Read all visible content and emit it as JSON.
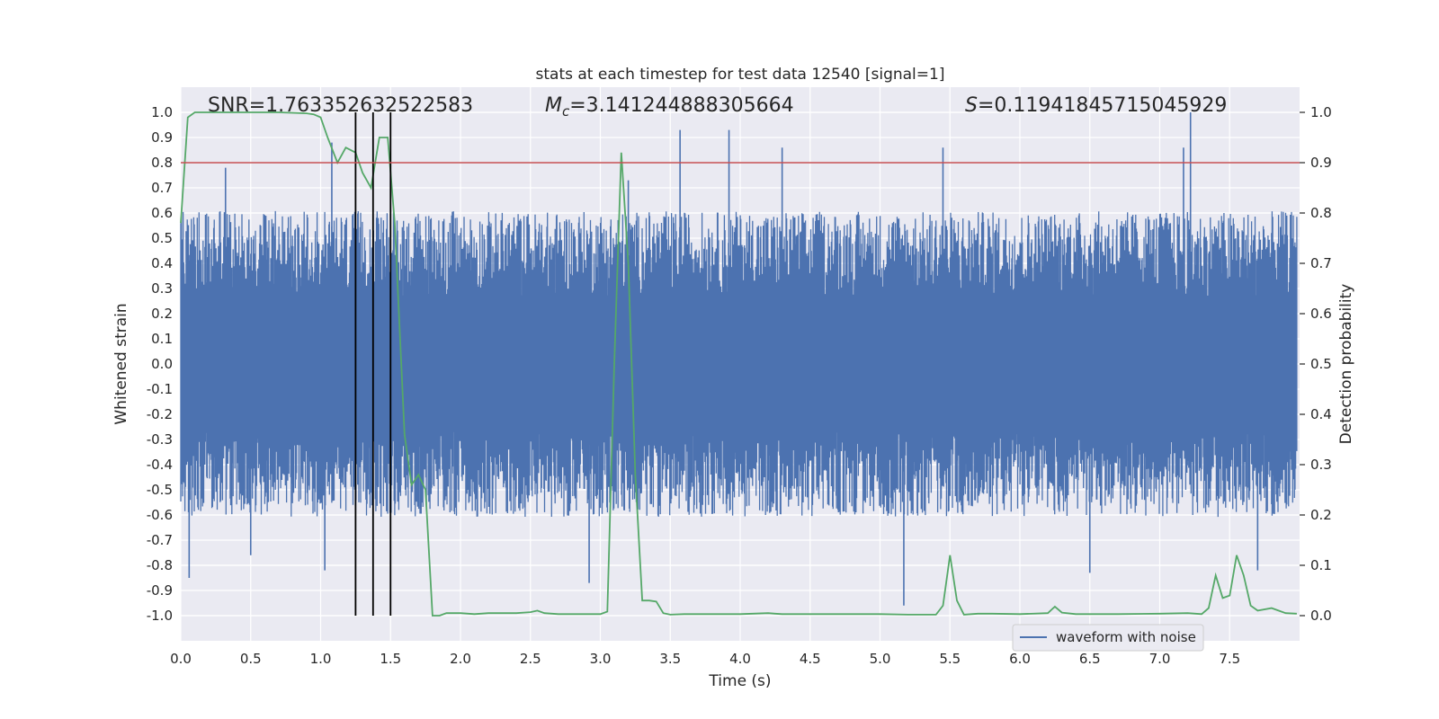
{
  "chart_data": {
    "type": "line",
    "title": "stats at each timestep for test data 12540 [signal=1]",
    "xlabel": "Time (s)",
    "ylabel_left": "Whitened strain",
    "ylabel_right": "Detection probability",
    "xlim": [
      0.0,
      8.0
    ],
    "ylim_left": [
      -1.1,
      1.1
    ],
    "ylim_right": [
      -0.05,
      1.05
    ],
    "x_ticks": [
      "0.0",
      "0.5",
      "1.0",
      "1.5",
      "2.0",
      "2.5",
      "3.0",
      "3.5",
      "4.0",
      "4.5",
      "5.0",
      "5.5",
      "6.0",
      "6.5",
      "7.0",
      "7.5"
    ],
    "x_tick_values": [
      0.0,
      0.5,
      1.0,
      1.5,
      2.0,
      2.5,
      3.0,
      3.5,
      4.0,
      4.5,
      5.0,
      5.5,
      6.0,
      6.5,
      7.0,
      7.5
    ],
    "y_left_ticks": [
      "1.0",
      "0.9",
      "0.8",
      "0.7",
      "0.6",
      "0.5",
      "0.4",
      "0.3",
      "0.2",
      "0.1",
      "0.0",
      "-0.1",
      "-0.2",
      "-0.3",
      "-0.4",
      "-0.5",
      "-0.6",
      "-0.7",
      "-0.8",
      "-0.9",
      "-1.0"
    ],
    "y_left_tick_values": [
      1.0,
      0.9,
      0.8,
      0.7,
      0.6,
      0.5,
      0.4,
      0.3,
      0.2,
      0.1,
      0.0,
      -0.1,
      -0.2,
      -0.3,
      -0.4,
      -0.5,
      -0.6,
      -0.7,
      -0.8,
      -0.9,
      -1.0
    ],
    "y_right_ticks": [
      "1.0",
      "0.9",
      "0.8",
      "0.7",
      "0.6",
      "0.5",
      "0.4",
      "0.3",
      "0.2",
      "0.1",
      "0.0"
    ],
    "y_right_tick_values": [
      1.0,
      0.9,
      0.8,
      0.7,
      0.6,
      0.5,
      0.4,
      0.3,
      0.2,
      0.1,
      0.0
    ],
    "grid": true,
    "annotations": {
      "snr": "SNR=1.763352632522583",
      "mc_symbol": "M",
      "mc_subscript": "c",
      "mc_value": "=3.141244888305664",
      "s_symbol": "S",
      "s_value": "=0.11941845715045929"
    },
    "threshold": {
      "value": 0.9,
      "axis": "right",
      "color": "#c44e52"
    },
    "vertical_lines": [
      1.25,
      1.375,
      1.5
    ],
    "waveform": {
      "name": "waveform with noise",
      "color": "#4c72b0",
      "envelope_upper": 0.45,
      "envelope_lower": -0.45,
      "spikes": [
        {
          "x": 0.06,
          "y": -0.85
        },
        {
          "x": 0.32,
          "y": 0.78
        },
        {
          "x": 0.5,
          "y": -0.76
        },
        {
          "x": 1.03,
          "y": -0.82
        },
        {
          "x": 1.08,
          "y": 0.88
        },
        {
          "x": 3.57,
          "y": 0.93
        },
        {
          "x": 3.92,
          "y": 0.93
        },
        {
          "x": 4.3,
          "y": 0.86
        },
        {
          "x": 5.45,
          "y": 0.86
        },
        {
          "x": 5.17,
          "y": -0.96
        },
        {
          "x": 6.5,
          "y": -0.83
        },
        {
          "x": 7.22,
          "y": 1.0
        },
        {
          "x": 7.17,
          "y": 0.86
        },
        {
          "x": 7.7,
          "y": -0.82
        },
        {
          "x": 2.92,
          "y": -0.87
        },
        {
          "x": 3.2,
          "y": 0.73
        }
      ]
    },
    "detection_probability": {
      "color": "#55a868",
      "x": [
        0.0,
        0.05,
        0.1,
        0.2,
        0.3,
        0.5,
        0.7,
        0.9,
        0.95,
        1.0,
        1.05,
        1.12,
        1.18,
        1.25,
        1.3,
        1.36,
        1.42,
        1.48,
        1.53,
        1.6,
        1.65,
        1.7,
        1.75,
        1.8,
        1.85,
        1.9,
        2.0,
        2.1,
        2.2,
        2.3,
        2.4,
        2.5,
        2.55,
        2.6,
        2.7,
        2.8,
        3.0,
        3.05,
        3.1,
        3.15,
        3.2,
        3.25,
        3.3,
        3.35,
        3.4,
        3.45,
        3.5,
        3.6,
        3.7,
        3.8,
        4.0,
        4.2,
        4.25,
        4.3,
        4.4,
        4.6,
        4.8,
        5.0,
        5.2,
        5.4,
        5.45,
        5.5,
        5.55,
        5.6,
        5.7,
        5.8,
        6.0,
        6.2,
        6.25,
        6.3,
        6.4,
        6.5,
        6.7,
        7.0,
        7.2,
        7.3,
        7.35,
        7.4,
        7.45,
        7.5,
        7.55,
        7.6,
        7.65,
        7.7,
        7.8,
        7.9,
        7.98
      ],
      "y": [
        0.78,
        0.99,
        1.0,
        1.0,
        1.0,
        1.0,
        1.0,
        0.998,
        0.996,
        0.99,
        0.95,
        0.9,
        0.93,
        0.92,
        0.88,
        0.85,
        0.95,
        0.95,
        0.78,
        0.36,
        0.26,
        0.28,
        0.25,
        0.0,
        0.0,
        0.005,
        0.005,
        0.003,
        0.005,
        0.005,
        0.005,
        0.007,
        0.01,
        0.005,
        0.003,
        0.003,
        0.003,
        0.008,
        0.5,
        0.92,
        0.7,
        0.28,
        0.03,
        0.03,
        0.028,
        0.005,
        0.002,
        0.003,
        0.003,
        0.003,
        0.003,
        0.005,
        0.004,
        0.003,
        0.003,
        0.003,
        0.003,
        0.003,
        0.002,
        0.002,
        0.02,
        0.12,
        0.03,
        0.002,
        0.004,
        0.004,
        0.003,
        0.005,
        0.018,
        0.006,
        0.003,
        0.003,
        0.003,
        0.004,
        0.005,
        0.003,
        0.015,
        0.08,
        0.035,
        0.04,
        0.12,
        0.08,
        0.02,
        0.01,
        0.015,
        0.005,
        0.004
      ]
    },
    "legend": {
      "position": "lower-right",
      "entries": [
        "waveform with noise"
      ]
    }
  }
}
